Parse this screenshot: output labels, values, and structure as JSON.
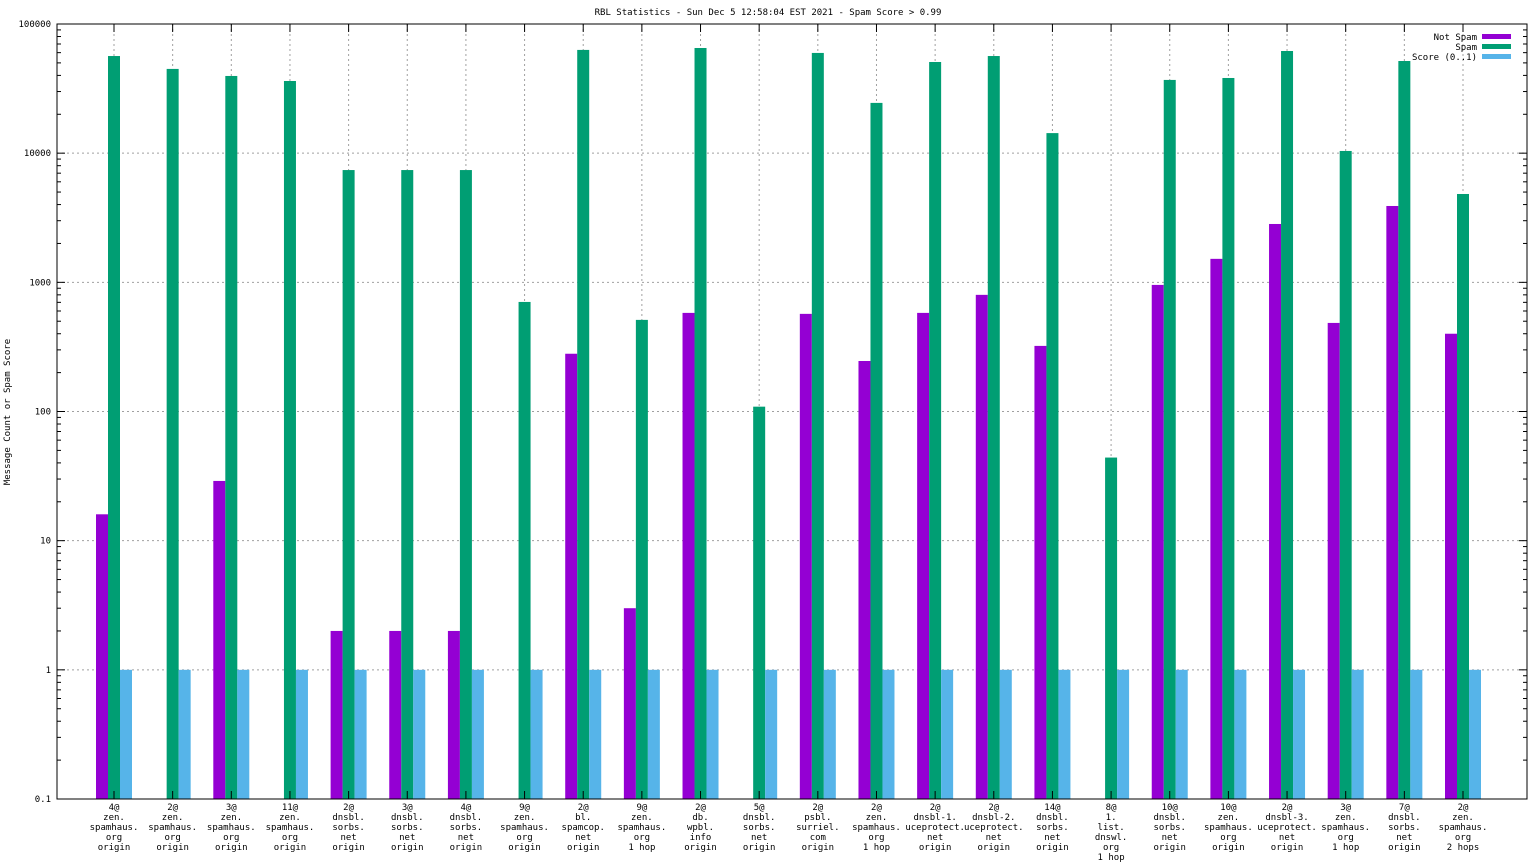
{
  "chart_data": {
    "type": "bar",
    "title": "RBL Statistics - Sun Dec  5 12:58:04 EST 2021 - Spam Score > 0.99",
    "xlabel": "",
    "ylabel": "Message Count or Spam Score",
    "yscale": "log",
    "ylim": [
      0.1,
      100000
    ],
    "yticks": [
      "100000",
      "10000",
      "1000",
      "100",
      "10",
      "1",
      "0.1"
    ],
    "grid": true,
    "legend_position": "top-right",
    "categories": [
      [
        "4@",
        "zen.",
        "spamhaus.",
        "org",
        "origin"
      ],
      [
        "2@",
        "zen.",
        "spamhaus.",
        "org",
        "origin"
      ],
      [
        "3@",
        "zen.",
        "spamhaus.",
        "org",
        "origin"
      ],
      [
        "11@",
        "zen.",
        "spamhaus.",
        "org",
        "origin"
      ],
      [
        "2@",
        "dnsbl.",
        "sorbs.",
        "net",
        "origin"
      ],
      [
        "3@",
        "dnsbl.",
        "sorbs.",
        "net",
        "origin"
      ],
      [
        "4@",
        "dnsbl.",
        "sorbs.",
        "net",
        "origin"
      ],
      [
        "9@",
        "zen.",
        "spamhaus.",
        "org",
        "origin"
      ],
      [
        "2@",
        "bl.",
        "spamcop.",
        "net",
        "origin"
      ],
      [
        "9@",
        "zen.",
        "spamhaus.",
        "org",
        "1 hop"
      ],
      [
        "2@",
        "db.",
        "wpbl.",
        "info",
        "origin"
      ],
      [
        "5@",
        "dnsbl.",
        "sorbs.",
        "net",
        "origin"
      ],
      [
        "2@",
        "psbl.",
        "surriel.",
        "com",
        "origin"
      ],
      [
        "2@",
        "zen.",
        "spamhaus.",
        "org",
        "1 hop"
      ],
      [
        "2@",
        "dnsbl-1.",
        "uceprotect.",
        "net",
        "origin"
      ],
      [
        "2@",
        "dnsbl-2.",
        "uceprotect.",
        "net",
        "origin"
      ],
      [
        "14@",
        "dnsbl.",
        "sorbs.",
        "net",
        "origin"
      ],
      [
        "8@",
        "1.",
        "list.",
        "dnswl.",
        "org",
        "1 hop"
      ],
      [
        "10@",
        "dnsbl.",
        "sorbs.",
        "net",
        "origin"
      ],
      [
        "10@",
        "zen.",
        "spamhaus.",
        "org",
        "origin"
      ],
      [
        "2@",
        "dnsbl-3.",
        "uceprotect.",
        "net",
        "origin"
      ],
      [
        "3@",
        "zen.",
        "spamhaus.",
        "org",
        "1 hop"
      ],
      [
        "7@",
        "dnsbl.",
        "sorbs.",
        "net",
        "origin"
      ],
      [
        "2@",
        "zen.",
        "spamhaus.",
        "org",
        "2 hops"
      ]
    ],
    "series": [
      {
        "name": "Not Spam",
        "color": "#9400d3",
        "values": [
          16,
          null,
          29,
          null,
          2,
          2,
          2,
          null,
          280,
          3,
          580,
          null,
          570,
          246,
          580,
          800,
          322,
          null,
          955,
          1520,
          2830,
          485,
          3900,
          400
        ]
      },
      {
        "name": "Spam",
        "color": "#009e73",
        "values": [
          56500,
          44900,
          39600,
          36200,
          7400,
          7400,
          7400,
          705,
          63000,
          512,
          65200,
          109,
          59700,
          24500,
          50800,
          56500,
          14300,
          44,
          36900,
          38200,
          61800,
          10400,
          51700,
          4830
        ]
      },
      {
        "name": "Score (0..1)",
        "color": "#56b4e9",
        "values": [
          1,
          1,
          1,
          1,
          1,
          1,
          1,
          1,
          1,
          1,
          1,
          1,
          1,
          1,
          1,
          1,
          1,
          1,
          1,
          1,
          1,
          1,
          1,
          1
        ]
      }
    ]
  }
}
